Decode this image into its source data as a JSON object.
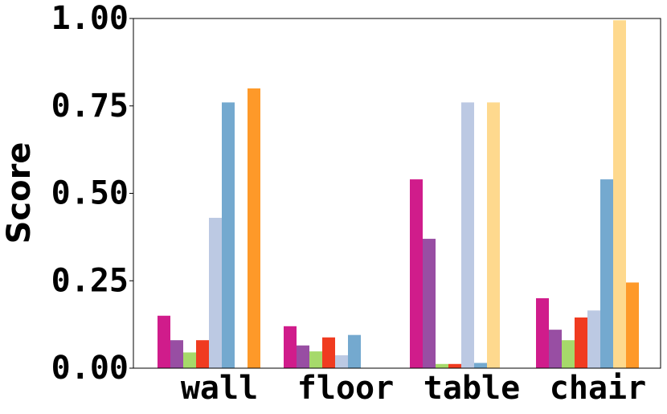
{
  "chart_data": {
    "type": "bar",
    "ylabel": "Score",
    "categories": [
      "wall",
      "floor",
      "table",
      "chair"
    ],
    "series": [
      {
        "color": "#d01c8b",
        "values": [
          0.15,
          0.12,
          0.54,
          0.2
        ]
      },
      {
        "color": "#984ea3",
        "values": [
          0.08,
          0.065,
          0.37,
          0.11
        ]
      },
      {
        "color": "#a6d96a",
        "values": [
          0.045,
          0.048,
          0.012,
          0.08
        ]
      },
      {
        "color": "#f03b20",
        "values": [
          0.08,
          0.088,
          0.012,
          0.145
        ]
      },
      {
        "color": "#bcc9e3",
        "values": [
          0.43,
          0.037,
          0.76,
          0.165
        ]
      },
      {
        "color": "#74a9cf",
        "values": [
          0.76,
          0.095,
          0.015,
          0.54
        ]
      },
      {
        "color": "#fed98e",
        "values": [
          0,
          0,
          0.76,
          0.995
        ]
      },
      {
        "color": "#fe9929",
        "values": [
          0.8,
          0,
          0,
          0.245
        ]
      }
    ],
    "ylim": [
      0,
      1
    ],
    "yticks": [
      {
        "value": 0,
        "label": "0.00"
      },
      0.25,
      {
        "value": 0.5,
        "label": "0.50"
      },
      0.75,
      {
        "value": 1,
        "label": "1.00"
      }
    ],
    "grid": false
  }
}
